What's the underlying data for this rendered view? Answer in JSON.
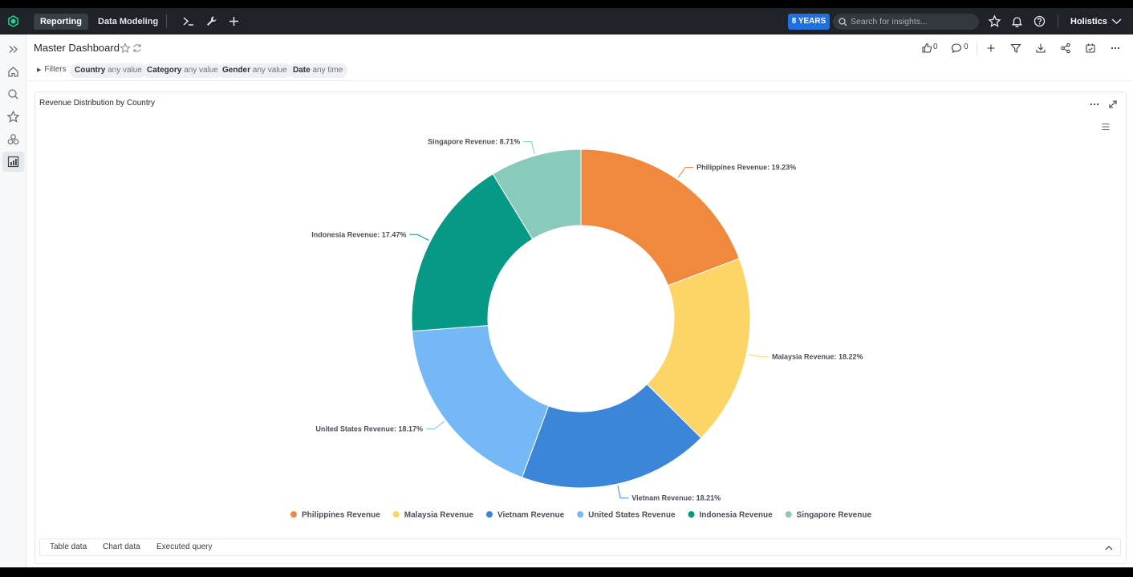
{
  "topbar": {
    "tabs": [
      "Reporting",
      "Data Modeling"
    ],
    "years_badge": "8 YEARS",
    "search_placeholder": "Search for insights...",
    "user_name": "Holistics"
  },
  "header": {
    "title": "Master Dashboard",
    "likes": "0",
    "comments": "0"
  },
  "filters": {
    "toggle_label": "Filters",
    "chips": [
      {
        "name": "Country",
        "value": "any value"
      },
      {
        "name": "Category",
        "value": "any value"
      },
      {
        "name": "Gender",
        "value": "any value"
      },
      {
        "name": "Date",
        "value": "any time"
      }
    ]
  },
  "widget": {
    "title": "Revenue Distribution by Country",
    "bottom_tabs": [
      "Table data",
      "Chart data",
      "Executed query"
    ]
  },
  "chart_data": {
    "type": "pie",
    "variant": "donut",
    "title": "Revenue Distribution by Country",
    "legend_position": "bottom",
    "slices": [
      {
        "name": "Philippines Revenue",
        "label": "Philippines Revenue: 19.23%",
        "value": 19.23,
        "color": "#f0893e"
      },
      {
        "name": "Malaysia Revenue",
        "label": "Malaysia Revenue: 18.22%",
        "value": 18.22,
        "color": "#fdd567"
      },
      {
        "name": "Vietnam Revenue",
        "label": "Vietnam Revenue: 18.21%",
        "value": 18.21,
        "color": "#3b86d9"
      },
      {
        "name": "United States Revenue",
        "label": "United States Revenue: 18.17%",
        "value": 18.17,
        "color": "#74b9f5"
      },
      {
        "name": "Indonesia Revenue",
        "label": "Indonesia Revenue: 17.47%",
        "value": 17.47,
        "color": "#069a86"
      },
      {
        "name": "Singapore Revenue",
        "label": "Singapore Revenue: 8.71%",
        "value": 8.71,
        "color": "#88cbbd"
      }
    ]
  }
}
